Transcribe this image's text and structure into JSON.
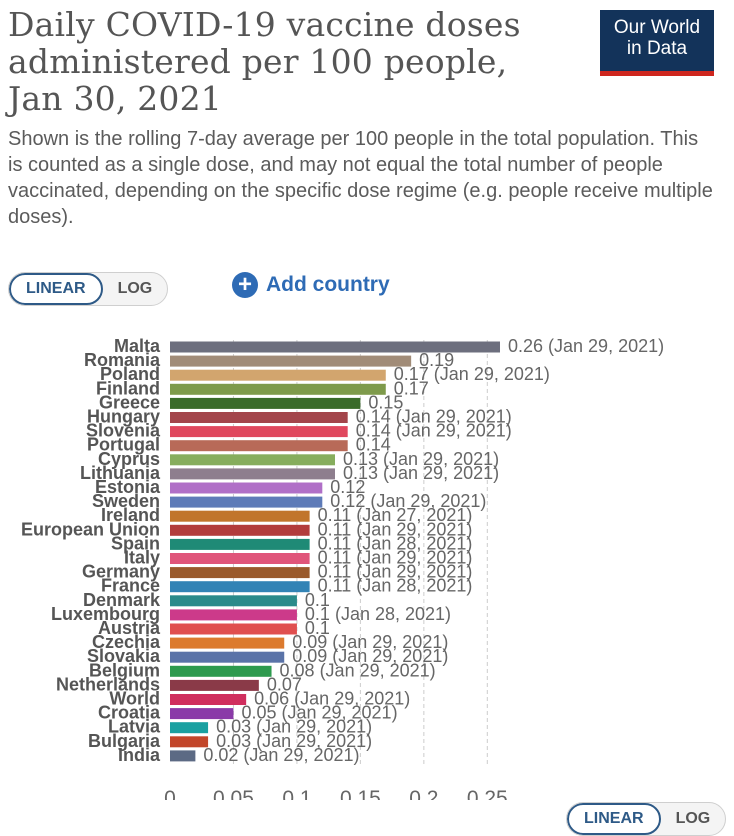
{
  "header": {
    "title": "Daily COVID-19 vaccine doses administered per 100 people, Jan 30, 2021",
    "subtitle": "Shown is the rolling 7-day average per 100 people in the total population. This is counted as a single dose, and may not equal the total number of people vaccinated, depending on the specific dose regime (e.g. people receive multiple doses).",
    "logo_line1": "Our World",
    "logo_line2": "in Data"
  },
  "controls": {
    "linear_label": "LINEAR",
    "log_label": "LOG",
    "add_country_label": "Add country"
  },
  "colors": {
    "accent": "#2e6bb5",
    "logo_bg": "#13335a",
    "logo_bar": "#ce261e"
  },
  "chart_data": {
    "type": "bar",
    "orientation": "horizontal",
    "title": "Daily COVID-19 vaccine doses administered per 100 people, Jan 30, 2021",
    "xlabel": "",
    "ylabel": "",
    "xlim": [
      0,
      0.26
    ],
    "xticks": [
      0,
      0.05,
      0.1,
      0.15,
      0.2,
      0.25
    ],
    "xtick_labels": [
      "0",
      "0.05",
      "0.1",
      "0.15",
      "0.2",
      "0.25"
    ],
    "grid": "vertical dashed",
    "bars": [
      {
        "name": "Malta",
        "value": 0.26,
        "label": "0.26 (Jan 29, 2021)",
        "color": "#6d6f7e"
      },
      {
        "name": "Romania",
        "value": 0.19,
        "label": "0.19",
        "color": "#a18c78"
      },
      {
        "name": "Poland",
        "value": 0.17,
        "label": "0.17 (Jan 29, 2021)",
        "color": "#d2a56e"
      },
      {
        "name": "Finland",
        "value": 0.17,
        "label": "0.17",
        "color": "#7e9a4b"
      },
      {
        "name": "Greece",
        "value": 0.15,
        "label": "0.15",
        "color": "#3a6b2a"
      },
      {
        "name": "Hungary",
        "value": 0.14,
        "label": "0.14 (Jan 29, 2021)",
        "color": "#a3454b"
      },
      {
        "name": "Slovenia",
        "value": 0.14,
        "label": "0.14 (Jan 29, 2021)",
        "color": "#e0485e"
      },
      {
        "name": "Portugal",
        "value": 0.14,
        "label": "0.14",
        "color": "#b86a58"
      },
      {
        "name": "Cyprus",
        "value": 0.13,
        "label": "0.13 (Jan 29, 2021)",
        "color": "#86ad5d"
      },
      {
        "name": "Lithuania",
        "value": 0.13,
        "label": "0.13 (Jan 29, 2021)",
        "color": "#8e7e8e"
      },
      {
        "name": "Estonia",
        "value": 0.12,
        "label": "0.12",
        "color": "#b06fc7"
      },
      {
        "name": "Sweden",
        "value": 0.12,
        "label": "0.12 (Jan 29, 2021)",
        "color": "#5e7bb8"
      },
      {
        "name": "Ireland",
        "value": 0.11,
        "label": "0.11 (Jan 27, 2021)",
        "color": "#c1752c"
      },
      {
        "name": "European Union",
        "value": 0.11,
        "label": "0.11 (Jan 29, 2021)",
        "color": "#b23c3c"
      },
      {
        "name": "Spain",
        "value": 0.11,
        "label": "0.11 (Jan 28, 2021)",
        "color": "#1f8a76"
      },
      {
        "name": "Italy",
        "value": 0.11,
        "label": "0.11 (Jan 29, 2021)",
        "color": "#e0557a"
      },
      {
        "name": "Germany",
        "value": 0.11,
        "label": "0.11 (Jan 29, 2021)",
        "color": "#9a5a2c"
      },
      {
        "name": "France",
        "value": 0.11,
        "label": "0.11 (Jan 28, 2021)",
        "color": "#3283b5"
      },
      {
        "name": "Denmark",
        "value": 0.1,
        "label": "0.1",
        "color": "#2a8a8a"
      },
      {
        "name": "Luxembourg",
        "value": 0.1,
        "label": "0.1 (Jan 28, 2021)",
        "color": "#cc3a8a"
      },
      {
        "name": "Austria",
        "value": 0.1,
        "label": "0.1",
        "color": "#e04f4f"
      },
      {
        "name": "Czechia",
        "value": 0.09,
        "label": "0.09 (Jan 29, 2021)",
        "color": "#dc7a2e"
      },
      {
        "name": "Slovakia",
        "value": 0.09,
        "label": "0.09 (Jan 29, 2021)",
        "color": "#5a73a8"
      },
      {
        "name": "Belgium",
        "value": 0.08,
        "label": "0.08 (Jan 29, 2021)",
        "color": "#2e9a4e"
      },
      {
        "name": "Netherlands",
        "value": 0.07,
        "label": "0.07",
        "color": "#8a3a48"
      },
      {
        "name": "World",
        "value": 0.06,
        "label": "0.06 (Jan 29, 2021)",
        "color": "#d02e5e"
      },
      {
        "name": "Croatia",
        "value": 0.05,
        "label": "0.05 (Jan 29, 2021)",
        "color": "#8a3aa8"
      },
      {
        "name": "Latvia",
        "value": 0.03,
        "label": "0.03 (Jan 29, 2021)",
        "color": "#1aa0a0"
      },
      {
        "name": "Bulgaria",
        "value": 0.03,
        "label": "0.03 (Jan 29, 2021)",
        "color": "#c2462a"
      },
      {
        "name": "India",
        "value": 0.02,
        "label": "0.02 (Jan 29, 2021)",
        "color": "#5c6a84"
      }
    ]
  }
}
